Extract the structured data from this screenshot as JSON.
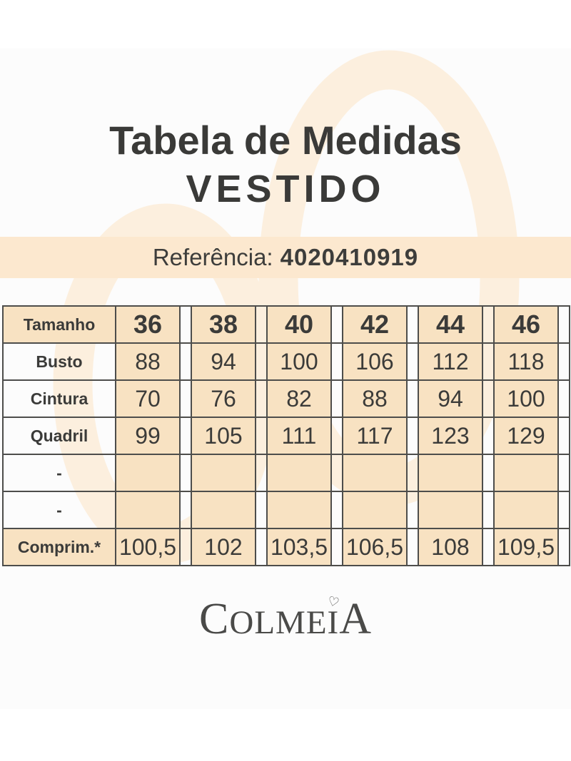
{
  "header": {
    "title_line1": "Tabela de Medidas",
    "title_line2": "VESTIDO"
  },
  "reference": {
    "label": "Referência:",
    "value": "4020410919"
  },
  "size_table": {
    "header_label": "Tamanho",
    "sizes": [
      "36",
      "38",
      "40",
      "42",
      "44",
      "46"
    ],
    "rows": [
      {
        "label": "Busto",
        "values": [
          "88",
          "94",
          "100",
          "106",
          "112",
          "118"
        ]
      },
      {
        "label": "Cintura",
        "values": [
          "70",
          "76",
          "82",
          "88",
          "94",
          "100"
        ]
      },
      {
        "label": "Quadril",
        "values": [
          "99",
          "105",
          "111",
          "117",
          "123",
          "129"
        ]
      },
      {
        "label": "-",
        "values": [
          "",
          "",
          "",
          "",
          "",
          ""
        ]
      },
      {
        "label": "-",
        "values": [
          "",
          "",
          "",
          "",
          "",
          ""
        ]
      },
      {
        "label": "Comprim.*",
        "values": [
          "100,5",
          "102",
          "103,5",
          "106,5",
          "108",
          "109,5"
        ]
      }
    ]
  },
  "footer": {
    "brand_first": "C",
    "brand_mid": "OLME",
    "brand_i": "I",
    "brand_last": "A",
    "heart_glyph": "♡"
  },
  "colors": {
    "card_background": "#fcfcfc",
    "watermark_peach": "#fcefde",
    "banner_peach": "#fce8cf",
    "cell_peach": "#f8e2c2",
    "table_border": "#4d4d4b",
    "text_dark": "#3a3a38",
    "logo_gray": "#4a4a48"
  }
}
